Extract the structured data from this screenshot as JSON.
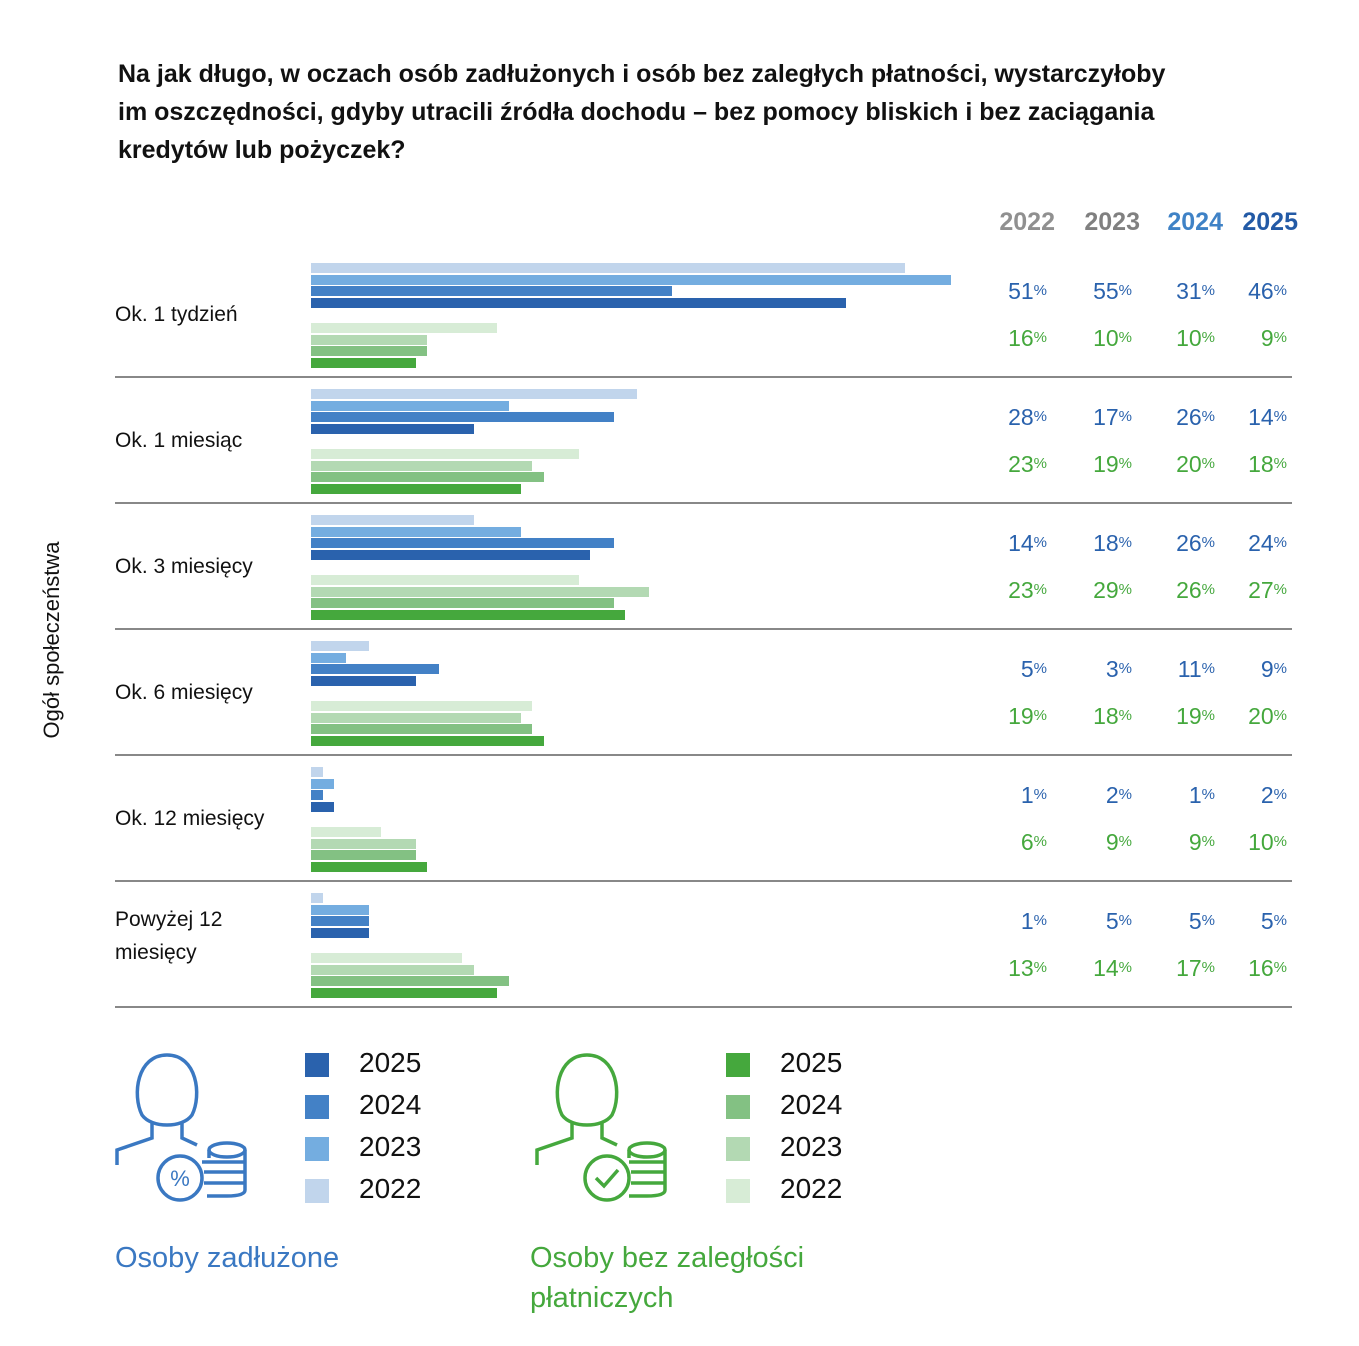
{
  "chart_data": {
    "type": "bar",
    "orientation": "horizontal",
    "title": "Na jak długo, w oczach osób zadłużonych i osób bez zaległych płatności, wystarczyłoby im oszczędności, gdyby utracili źródła dochodu – bez pomocy bliskich i bez zaciągania kredytów lub pożyczek?",
    "ylabel": "Ogół społeczeństwa",
    "years": [
      "2022",
      "2023",
      "2024",
      "2025"
    ],
    "categories": [
      "Ok. 1 tydzień",
      "Ok. 1 miesiąc",
      "Ok. 3 miesięcy",
      "Ok. 6 miesięcy",
      "Ok. 12 miesięcy",
      "Powyżej 12 miesięcy"
    ],
    "groups": [
      {
        "name": "Osoby zadłużone",
        "color": "#2a62ad",
        "year_colors": [
          "#c1d5ec",
          "#74ade0",
          "#4381c6",
          "#2a62ad"
        ],
        "values": [
          [
            51,
            55,
            31,
            46
          ],
          [
            28,
            17,
            26,
            14
          ],
          [
            14,
            18,
            26,
            24
          ],
          [
            5,
            3,
            11,
            9
          ],
          [
            1,
            2,
            1,
            2
          ],
          [
            1,
            5,
            5,
            5
          ]
        ]
      },
      {
        "name": "Osoby bez zaległości płatniczych",
        "color": "#45a83d",
        "year_colors": [
          "#d7ecd6",
          "#b3d9b3",
          "#83c183",
          "#45a83d"
        ],
        "values": [
          [
            16,
            10,
            10,
            9
          ],
          [
            23,
            19,
            20,
            18
          ],
          [
            23,
            29,
            26,
            27
          ],
          [
            19,
            18,
            19,
            20
          ],
          [
            6,
            9,
            9,
            10
          ],
          [
            13,
            14,
            17,
            16
          ]
        ]
      }
    ],
    "unit": "%"
  },
  "header_years": [
    {
      "label": "2022",
      "color": "#909090"
    },
    {
      "label": "2023",
      "color": "#808080"
    },
    {
      "label": "2024",
      "color": "#3f82c6"
    },
    {
      "label": "2025",
      "color": "#235aa6"
    }
  ],
  "legend": {
    "blue_title": "Osoby zadłużone",
    "green_title_1": "Osoby bez zaległości",
    "green_title_2": "płatniczych",
    "years": [
      "2025",
      "2024",
      "2023",
      "2022"
    ]
  }
}
